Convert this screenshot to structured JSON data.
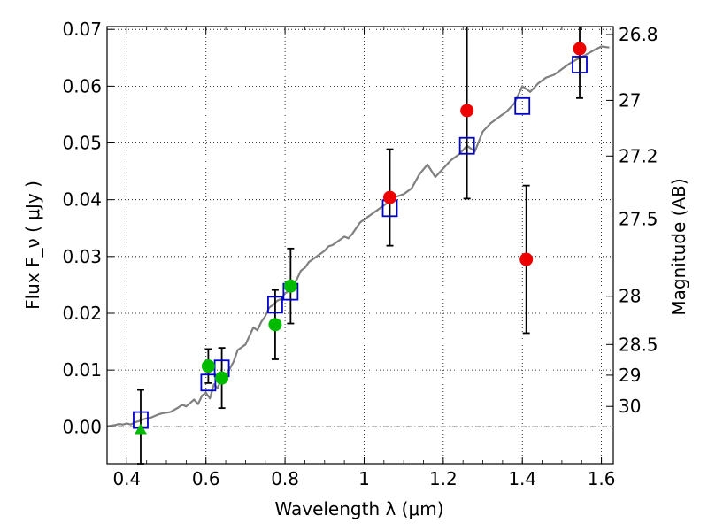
{
  "chart_data": {
    "type": "scatter",
    "xlabel": "Wavelength  λ (μm)",
    "ylabel": "Flux  F_ν  ( μJy )",
    "y2label": "Magnitude (AB)",
    "xlim": [
      0.35,
      1.63
    ],
    "ylim": [
      -0.0065,
      0.0705
    ],
    "grid": true,
    "x_ticks": [
      0.4,
      0.6,
      0.8,
      1.0,
      1.2,
      1.4,
      1.6
    ],
    "x_tick_labels": [
      "0.4",
      "0.6",
      "0.8",
      "1",
      "1.2",
      "1.4",
      "1.6"
    ],
    "y_ticks": [
      0.0,
      0.01,
      0.02,
      0.03,
      0.04,
      0.05,
      0.06,
      0.07
    ],
    "y_tick_labels": [
      "0.00",
      "0.01",
      "0.02",
      "0.03",
      "0.04",
      "0.05",
      "0.06",
      "0.07"
    ],
    "mag_ticks": [
      {
        "flux": 0.0691,
        "label": "26.8"
      },
      {
        "flux": 0.0575,
        "label": "27"
      },
      {
        "flux": 0.0477,
        "label": "27.2"
      },
      {
        "flux": 0.0366,
        "label": "27.5"
      },
      {
        "flux": 0.023,
        "label": "28"
      },
      {
        "flux": 0.0145,
        "label": "28.5"
      },
      {
        "flux": 0.0091,
        "label": "29"
      },
      {
        "flux": 0.0036,
        "label": "30"
      }
    ],
    "colors": {
      "model": "#808080",
      "model_phot": "#0000cc",
      "observed_red": "#ee0000",
      "observed_green": "#00bb00",
      "errorbar": "#000000",
      "zero_line": "#000000"
    },
    "series": [
      {
        "name": "model spectrum",
        "kind": "line",
        "x": [
          0.35,
          0.36,
          0.37,
          0.38,
          0.39,
          0.4,
          0.41,
          0.42,
          0.43,
          0.44,
          0.45,
          0.46,
          0.47,
          0.48,
          0.49,
          0.5,
          0.51,
          0.52,
          0.53,
          0.54,
          0.55,
          0.56,
          0.57,
          0.58,
          0.59,
          0.6,
          0.61,
          0.62,
          0.63,
          0.64,
          0.65,
          0.66,
          0.67,
          0.68,
          0.69,
          0.7,
          0.71,
          0.72,
          0.73,
          0.74,
          0.75,
          0.76,
          0.77,
          0.78,
          0.79,
          0.8,
          0.81,
          0.82,
          0.83,
          0.84,
          0.85,
          0.86,
          0.87,
          0.88,
          0.89,
          0.9,
          0.91,
          0.92,
          0.93,
          0.94,
          0.95,
          0.96,
          0.97,
          0.98,
          0.99,
          1.0,
          1.02,
          1.04,
          1.06,
          1.08,
          1.1,
          1.12,
          1.14,
          1.16,
          1.18,
          1.2,
          1.22,
          1.24,
          1.26,
          1.28,
          1.3,
          1.32,
          1.34,
          1.36,
          1.38,
          1.4,
          1.42,
          1.44,
          1.46,
          1.48,
          1.5,
          1.52,
          1.54,
          1.56,
          1.58,
          1.6,
          1.62
        ],
        "y": [
          0.0001,
          0.0002,
          0.0003,
          0.0005,
          0.0004,
          0.0006,
          0.0004,
          0.0008,
          0.001,
          0.0013,
          0.0015,
          0.0016,
          0.0019,
          0.0022,
          0.0024,
          0.0025,
          0.0026,
          0.003,
          0.0034,
          0.0039,
          0.0036,
          0.0042,
          0.0048,
          0.004,
          0.0055,
          0.006,
          0.005,
          0.0075,
          0.0068,
          0.009,
          0.0085,
          0.0102,
          0.0115,
          0.0135,
          0.014,
          0.0145,
          0.016,
          0.0175,
          0.017,
          0.0185,
          0.0195,
          0.021,
          0.0215,
          0.0222,
          0.0225,
          0.0235,
          0.024,
          0.025,
          0.026,
          0.0275,
          0.028,
          0.029,
          0.0295,
          0.03,
          0.0305,
          0.031,
          0.0318,
          0.032,
          0.0325,
          0.033,
          0.0335,
          0.0332,
          0.034,
          0.035,
          0.036,
          0.0365,
          0.0375,
          0.0385,
          0.0395,
          0.0405,
          0.041,
          0.042,
          0.0445,
          0.0462,
          0.044,
          0.0455,
          0.047,
          0.048,
          0.0495,
          0.0485,
          0.052,
          0.0535,
          0.0545,
          0.0555,
          0.057,
          0.06,
          0.059,
          0.0605,
          0.0615,
          0.062,
          0.063,
          0.064,
          0.0648,
          0.0655,
          0.0663,
          0.067,
          0.0668
        ]
      },
      {
        "name": "model photometry",
        "kind": "open-square",
        "x": [
          0.435,
          0.606,
          0.64,
          0.775,
          0.814,
          1.065,
          1.26,
          1.4,
          1.545
        ],
        "y": [
          0.0012,
          0.0078,
          0.0103,
          0.0215,
          0.0238,
          0.0385,
          0.0495,
          0.0565,
          0.0638
        ]
      },
      {
        "name": "observed (red)",
        "kind": "filled-circle",
        "x": [
          1.065,
          1.26,
          1.41,
          1.545
        ],
        "y": [
          0.0404,
          0.0557,
          0.0295,
          0.0666
        ],
        "err": [
          0.0085,
          0.0155,
          0.013,
          0.0087
        ]
      },
      {
        "name": "observed (green)",
        "kind": "filled-circle",
        "x": [
          0.606,
          0.64,
          0.775,
          0.814
        ],
        "y": [
          0.0107,
          0.0086,
          0.018,
          0.0248
        ],
        "err": [
          0.003,
          0.0053,
          0.0061,
          0.0066
        ]
      },
      {
        "name": "upper limit (green triangle)",
        "kind": "triangle",
        "x": [
          0.435
        ],
        "y": [
          -0.0005
        ],
        "err": [
          0.007
        ]
      }
    ]
  }
}
